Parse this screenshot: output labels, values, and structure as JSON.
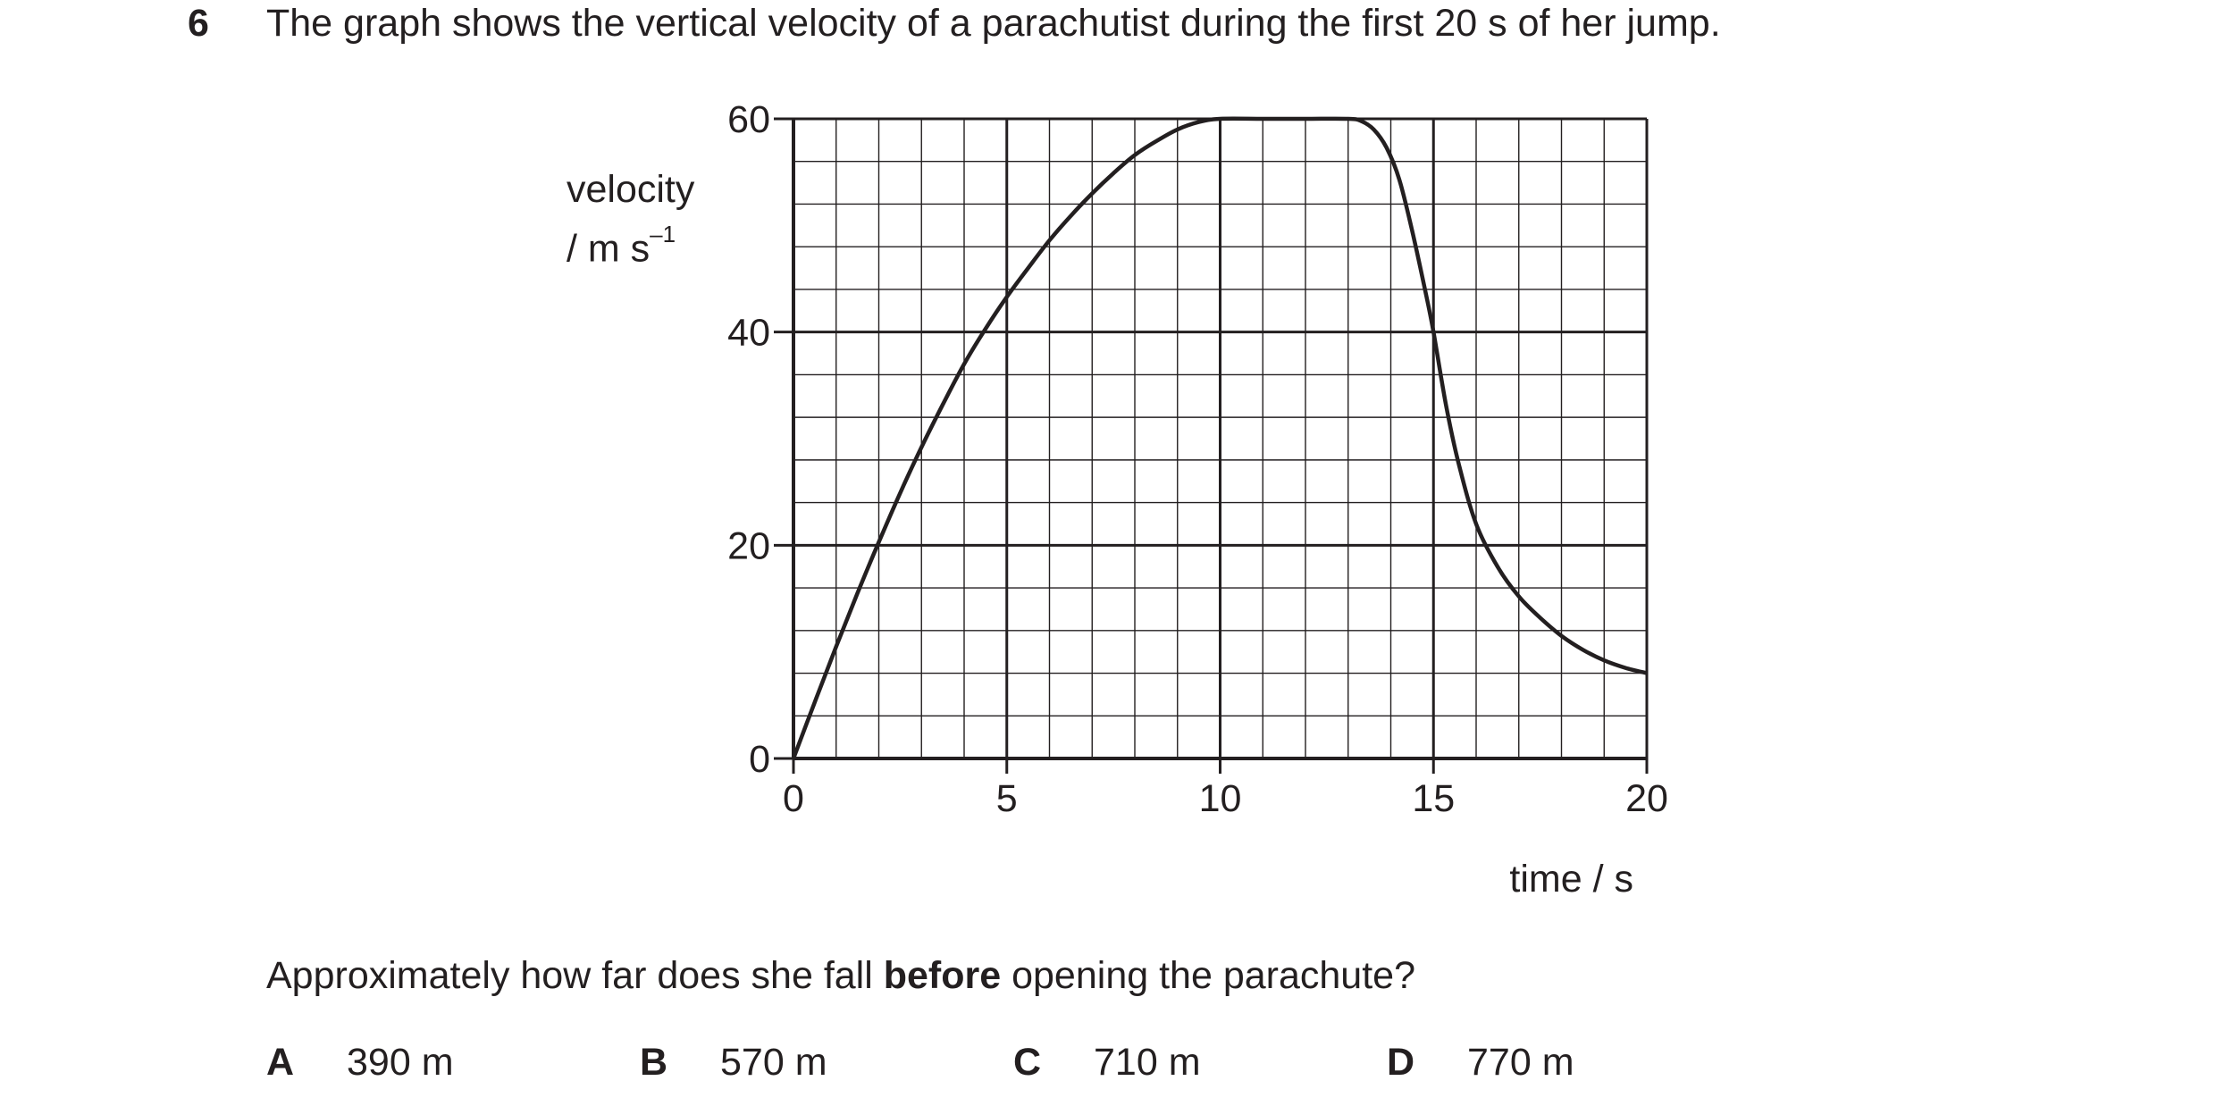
{
  "question": {
    "number": "6",
    "stem": "The graph shows the vertical velocity of a parachutist during the first 20 s of her jump.",
    "prompt_before": "Approximately how far does she fall ",
    "prompt_bold": "before",
    "prompt_after": " opening the parachute?"
  },
  "options": [
    {
      "letter": "A",
      "text": "390 m"
    },
    {
      "letter": "B",
      "text": "570 m"
    },
    {
      "letter": "C",
      "text": "710 m"
    },
    {
      "letter": "D",
      "text": "770 m"
    }
  ],
  "chart_data": {
    "type": "line",
    "ylabel_line1": "velocity",
    "ylabel_line2": "/ m s",
    "ylabel_unit_power": "–1",
    "xlabel": "time / s",
    "xlim": [
      0,
      20
    ],
    "ylim": [
      0,
      60
    ],
    "x_ticks": [
      0,
      5,
      10,
      15,
      20
    ],
    "y_ticks": [
      0,
      20,
      40,
      60
    ],
    "grid": true,
    "minor_x_step": 1,
    "minor_y_step": 4,
    "series": [
      {
        "x": [
          0,
          0.5,
          1,
          1.5,
          2,
          2.5,
          3,
          3.5,
          4,
          4.5,
          5,
          5.5,
          6,
          6.5,
          7,
          7.5,
          8,
          8.5,
          9,
          9.5,
          10,
          11,
          12,
          13,
          13.3,
          13.6,
          13.9,
          14.2,
          14.5,
          14.8,
          15,
          15.3,
          15.6,
          16,
          16.5,
          17,
          17.5,
          18,
          18.5,
          19,
          19.5,
          20
        ],
        "y": [
          0,
          5.3,
          10.5,
          15.5,
          20.3,
          24.9,
          29.2,
          33.2,
          37.0,
          40.3,
          43.3,
          46.0,
          48.6,
          50.9,
          53.0,
          54.9,
          56.6,
          57.9,
          59.0,
          59.7,
          60,
          60,
          60,
          60,
          59.8,
          59.0,
          57.3,
          54.3,
          49.5,
          44.0,
          40.0,
          33.0,
          27.5,
          22.0,
          18.0,
          15.2,
          13.2,
          11.5,
          10.2,
          9.2,
          8.5,
          8.0
        ]
      }
    ]
  }
}
